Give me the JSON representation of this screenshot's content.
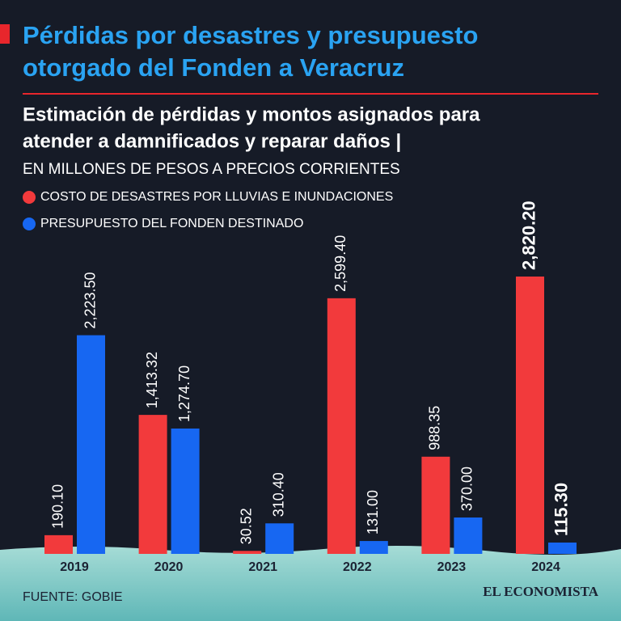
{
  "chart_data": {
    "type": "bar",
    "title": [
      "Pérdidas por desastres y presupuesto",
      "otorgado del Fonden a Veracruz"
    ],
    "subtitle": [
      "Estimación de pérdidas y montos asignados para",
      "atender a damnificados y reparar daños |"
    ],
    "unit": "EN MILLONES DE PESOS A PRECIOS CORRIENTES",
    "categories": [
      "2019",
      "2020",
      "2021",
      "2022",
      "2023",
      "2024"
    ],
    "series": [
      {
        "name": "COSTO DE DESASTRES POR LLUVIAS E INUNDACIONES",
        "color": "#f23a3c",
        "values": [
          190.1,
          1413.32,
          30.52,
          2599.4,
          988.35,
          2820.2
        ],
        "value_labels": [
          "190.10",
          "1,413.32",
          "30.52",
          "2,599.40",
          "988.35",
          "2,820.20"
        ]
      },
      {
        "name": "PRESUPUESTO DEL FONDEN DESTINADO",
        "color": "#1767f2",
        "values": [
          2223.5,
          1274.7,
          310.4,
          131.0,
          370.0,
          115.3
        ],
        "value_labels": [
          "2,223.50",
          "1,274.70",
          "310.40",
          "131.00",
          "370.00",
          "115.30"
        ]
      }
    ],
    "source": "FUENTE: GOBIE",
    "logo": "EL ECONOMISTA"
  }
}
